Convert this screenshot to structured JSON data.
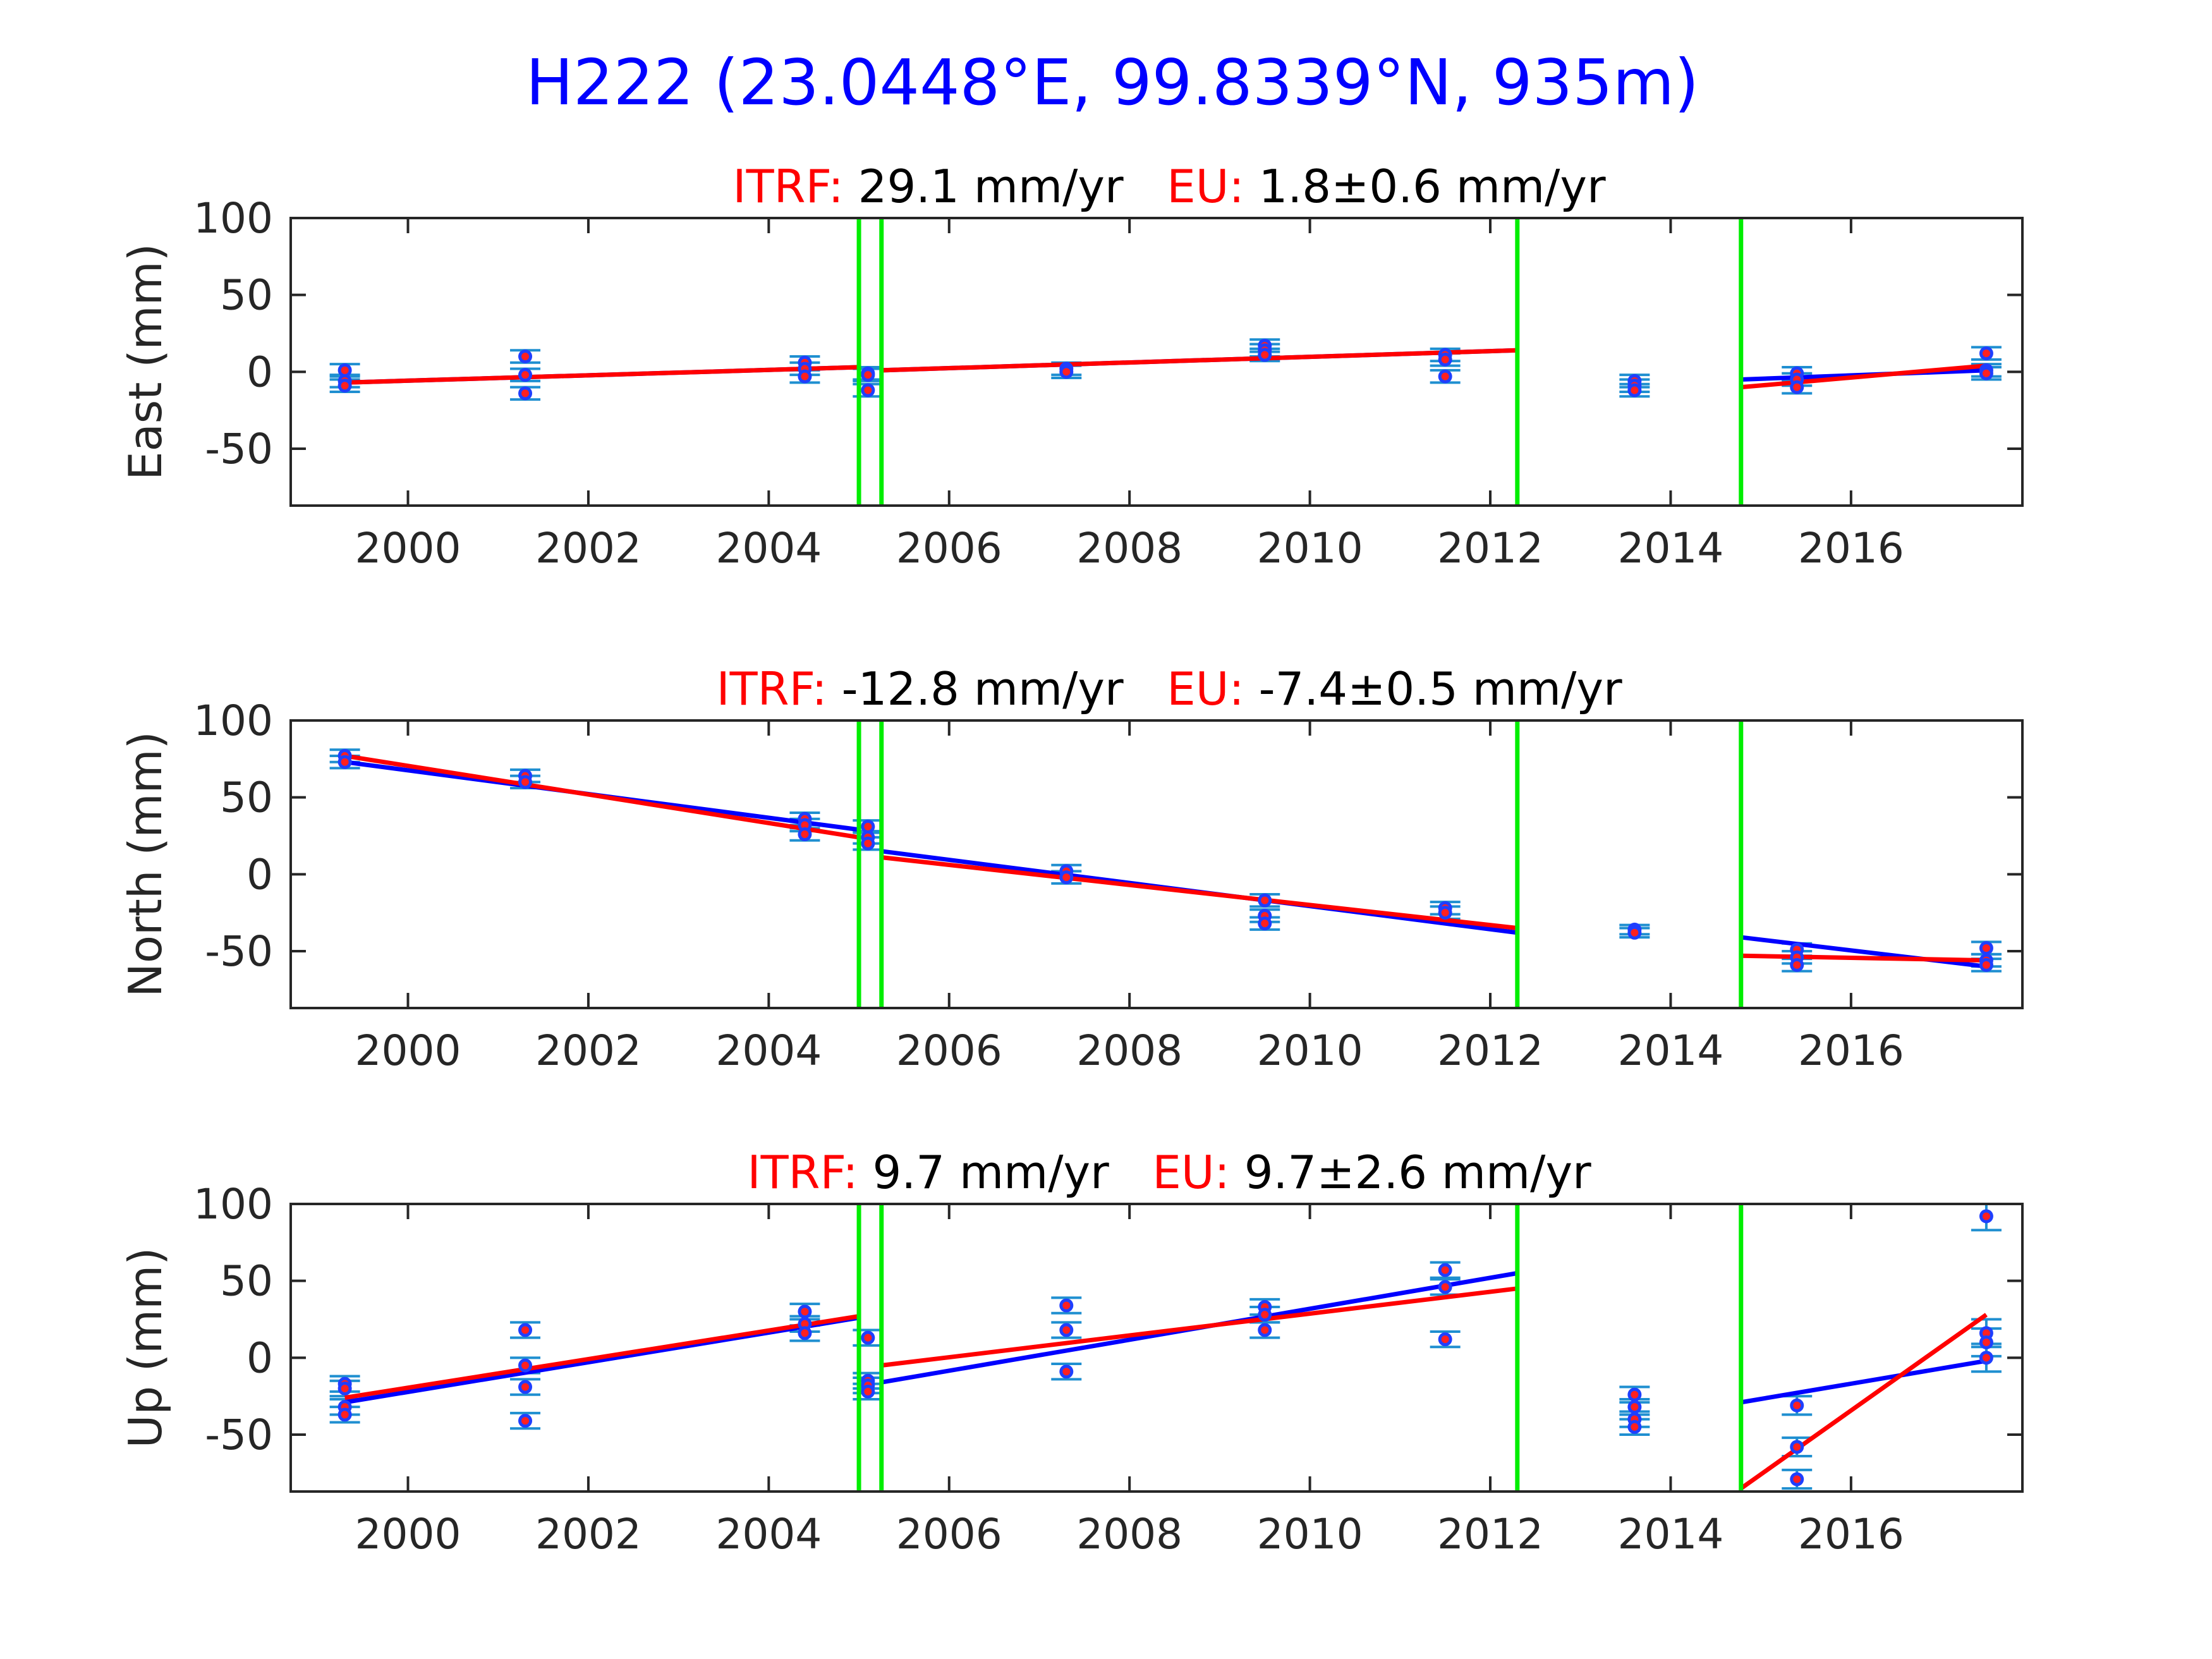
{
  "figure": {
    "title": "H222 (23.0448°E, 99.8339°N, 935m)"
  },
  "colors": {
    "title": "#0000ff",
    "itrf_label": "#ff0000",
    "eu_label": "#ff0000",
    "blue_fit": "#0000ff",
    "red_fit": "#ff0000",
    "steps": "#00ee00",
    "points_blue": "#1f3fff",
    "points_red": "#ff2020",
    "errorbar": "#1f8fd0"
  },
  "chart_data": [
    {
      "type": "scatter",
      "ylabel": "East (mm)",
      "itrf_label": "ITRF:",
      "itrf_value": "29.1 mm/yr",
      "eu_label": "EU:",
      "eu_value": "1.8±0.6 mm/yr",
      "xlim": [
        1998.7,
        2017.9
      ],
      "ylim": [
        -87,
        100
      ],
      "xticks": [
        2000,
        2002,
        2004,
        2006,
        2008,
        2010,
        2012,
        2014,
        2016
      ],
      "yticks": [
        100,
        50,
        0,
        -50
      ],
      "steps": [
        2005.0,
        2005.25,
        2012.3,
        2014.78
      ],
      "points": [
        {
          "x": 1999.3,
          "y": 1,
          "e": 4
        },
        {
          "x": 1999.3,
          "y": -6,
          "e": 4
        },
        {
          "x": 1999.3,
          "y": -9,
          "e": 4
        },
        {
          "x": 2001.3,
          "y": 10,
          "e": 4
        },
        {
          "x": 2001.3,
          "y": -2,
          "e": 4
        },
        {
          "x": 2001.3,
          "y": -14,
          "e": 4
        },
        {
          "x": 2004.4,
          "y": 6,
          "e": 4
        },
        {
          "x": 2004.4,
          "y": 2,
          "e": 4
        },
        {
          "x": 2004.4,
          "y": -3,
          "e": 4
        },
        {
          "x": 2005.1,
          "y": -1,
          "e": 4
        },
        {
          "x": 2005.1,
          "y": -2,
          "e": 4
        },
        {
          "x": 2005.1,
          "y": -12,
          "e": 4
        },
        {
          "x": 2007.3,
          "y": 2,
          "e": 4
        },
        {
          "x": 2007.3,
          "y": 0,
          "e": 4
        },
        {
          "x": 2009.5,
          "y": 17,
          "e": 4
        },
        {
          "x": 2009.5,
          "y": 14,
          "e": 4
        },
        {
          "x": 2009.5,
          "y": 11,
          "e": 4
        },
        {
          "x": 2011.5,
          "y": 11,
          "e": 4
        },
        {
          "x": 2011.5,
          "y": 8,
          "e": 4
        },
        {
          "x": 2011.5,
          "y": -3,
          "e": 4
        },
        {
          "x": 2013.6,
          "y": -6,
          "e": 4
        },
        {
          "x": 2013.6,
          "y": -9,
          "e": 4
        },
        {
          "x": 2013.6,
          "y": -12,
          "e": 4
        },
        {
          "x": 2015.4,
          "y": -1,
          "e": 4
        },
        {
          "x": 2015.4,
          "y": -5,
          "e": 4
        },
        {
          "x": 2015.4,
          "y": -10,
          "e": 4
        },
        {
          "x": 2017.5,
          "y": 12,
          "e": 4
        },
        {
          "x": 2017.5,
          "y": 1,
          "e": 4
        },
        {
          "x": 2017.5,
          "y": -1,
          "e": 4
        }
      ],
      "blue_fit": [
        [
          [
            1999.3,
            -7
          ],
          [
            2005.0,
            3
          ]
        ],
        [
          [
            2005.25,
            1
          ],
          [
            2012.3,
            14
          ]
        ],
        [
          [
            2014.78,
            -5
          ],
          [
            2017.5,
            1
          ]
        ]
      ],
      "red_fit": [
        [
          [
            1999.3,
            -7
          ],
          [
            2005.0,
            3
          ]
        ],
        [
          [
            2005.25,
            1
          ],
          [
            2012.3,
            14
          ]
        ],
        [
          [
            2014.78,
            -10
          ],
          [
            2017.5,
            4
          ]
        ]
      ]
    },
    {
      "type": "scatter",
      "ylabel": "North (mm)",
      "itrf_label": "ITRF:",
      "itrf_value": "-12.8 mm/yr",
      "eu_label": "EU:",
      "eu_value": "-7.4±0.5 mm/yr",
      "xlim": [
        1998.7,
        2017.9
      ],
      "ylim": [
        -87,
        100
      ],
      "xticks": [
        2000,
        2002,
        2004,
        2006,
        2008,
        2010,
        2012,
        2014,
        2016
      ],
      "yticks": [
        100,
        50,
        0,
        -50
      ],
      "steps": [
        2005.0,
        2005.25,
        2012.3,
        2014.78
      ],
      "points": [
        {
          "x": 1999.3,
          "y": 77,
          "e": 4
        },
        {
          "x": 1999.3,
          "y": 73,
          "e": 4
        },
        {
          "x": 2001.3,
          "y": 64,
          "e": 4
        },
        {
          "x": 2001.3,
          "y": 60,
          "e": 4
        },
        {
          "x": 2004.4,
          "y": 36,
          "e": 4
        },
        {
          "x": 2004.4,
          "y": 32,
          "e": 4
        },
        {
          "x": 2004.4,
          "y": 26,
          "e": 4
        },
        {
          "x": 2005.1,
          "y": 31,
          "e": 4
        },
        {
          "x": 2005.1,
          "y": 24,
          "e": 4
        },
        {
          "x": 2005.1,
          "y": 20,
          "e": 4
        },
        {
          "x": 2007.3,
          "y": 2,
          "e": 4
        },
        {
          "x": 2007.3,
          "y": -2,
          "e": 4
        },
        {
          "x": 2009.5,
          "y": -17,
          "e": 4
        },
        {
          "x": 2009.5,
          "y": -27,
          "e": 4
        },
        {
          "x": 2009.5,
          "y": -32,
          "e": 4
        },
        {
          "x": 2011.5,
          "y": -22,
          "e": 4
        },
        {
          "x": 2011.5,
          "y": -25,
          "e": 4
        },
        {
          "x": 2013.6,
          "y": -36,
          "e": 3
        },
        {
          "x": 2013.6,
          "y": -38,
          "e": 3
        },
        {
          "x": 2015.4,
          "y": -49,
          "e": 4
        },
        {
          "x": 2015.4,
          "y": -54,
          "e": 4
        },
        {
          "x": 2015.4,
          "y": -59,
          "e": 4
        },
        {
          "x": 2017.5,
          "y": -48,
          "e": 4
        },
        {
          "x": 2017.5,
          "y": -56,
          "e": 4
        },
        {
          "x": 2017.5,
          "y": -59,
          "e": 4
        }
      ],
      "blue_fit": [
        [
          [
            1999.3,
            73
          ],
          [
            2005.0,
            29
          ]
        ],
        [
          [
            2005.25,
            15
          ],
          [
            2012.3,
            -38
          ]
        ],
        [
          [
            2014.78,
            -41
          ],
          [
            2017.5,
            -60
          ]
        ]
      ],
      "red_fit": [
        [
          [
            1999.3,
            77
          ],
          [
            2005.0,
            24
          ]
        ],
        [
          [
            2005.25,
            11
          ],
          [
            2012.3,
            -35
          ]
        ],
        [
          [
            2014.78,
            -53
          ],
          [
            2017.5,
            -56
          ]
        ]
      ]
    },
    {
      "type": "scatter",
      "ylabel": "Up (mm)",
      "itrf_label": "ITRF:",
      "itrf_value": "9.7 mm/yr",
      "eu_label": "EU:",
      "eu_value": "9.7±2.6 mm/yr",
      "xlim": [
        1998.7,
        2017.9
      ],
      "ylim": [
        -87,
        100
      ],
      "xticks": [
        2000,
        2002,
        2004,
        2006,
        2008,
        2010,
        2012,
        2014,
        2016
      ],
      "yticks": [
        100,
        50,
        0,
        -50
      ],
      "steps": [
        2005.0,
        2005.25,
        2012.3,
        2014.78
      ],
      "points": [
        {
          "x": 1999.3,
          "y": -17,
          "e": 5
        },
        {
          "x": 1999.3,
          "y": -20,
          "e": 5
        },
        {
          "x": 1999.3,
          "y": -32,
          "e": 5
        },
        {
          "x": 1999.3,
          "y": -37,
          "e": 5
        },
        {
          "x": 2001.3,
          "y": 18,
          "e": 5
        },
        {
          "x": 2001.3,
          "y": -5,
          "e": 5
        },
        {
          "x": 2001.3,
          "y": -19,
          "e": 5
        },
        {
          "x": 2001.3,
          "y": -41,
          "e": 5
        },
        {
          "x": 2004.4,
          "y": 30,
          "e": 5
        },
        {
          "x": 2004.4,
          "y": 22,
          "e": 5
        },
        {
          "x": 2004.4,
          "y": 16,
          "e": 5
        },
        {
          "x": 2005.1,
          "y": 13,
          "e": 5
        },
        {
          "x": 2005.1,
          "y": -15,
          "e": 5
        },
        {
          "x": 2005.1,
          "y": -18,
          "e": 5
        },
        {
          "x": 2005.1,
          "y": -22,
          "e": 5
        },
        {
          "x": 2007.3,
          "y": 34,
          "e": 5
        },
        {
          "x": 2007.3,
          "y": 18,
          "e": 5
        },
        {
          "x": 2007.3,
          "y": -9,
          "e": 5
        },
        {
          "x": 2009.5,
          "y": 33,
          "e": 5
        },
        {
          "x": 2009.5,
          "y": 28,
          "e": 5
        },
        {
          "x": 2009.5,
          "y": 18,
          "e": 5
        },
        {
          "x": 2011.5,
          "y": 57,
          "e": 5
        },
        {
          "x": 2011.5,
          "y": 46,
          "e": 5
        },
        {
          "x": 2011.5,
          "y": 12,
          "e": 5
        },
        {
          "x": 2013.6,
          "y": -24,
          "e": 5
        },
        {
          "x": 2013.6,
          "y": -32,
          "e": 5
        },
        {
          "x": 2013.6,
          "y": -40,
          "e": 5
        },
        {
          "x": 2013.6,
          "y": -45,
          "e": 5
        },
        {
          "x": 2015.4,
          "y": -31,
          "e": 6
        },
        {
          "x": 2015.4,
          "y": -58,
          "e": 6
        },
        {
          "x": 2015.4,
          "y": -79,
          "e": 6
        },
        {
          "x": 2017.5,
          "y": 92,
          "e": 9
        },
        {
          "x": 2017.5,
          "y": 16,
          "e": 9
        },
        {
          "x": 2017.5,
          "y": 10,
          "e": 9
        },
        {
          "x": 2017.5,
          "y": 0,
          "e": 9
        }
      ],
      "blue_fit": [
        [
          [
            1999.3,
            -29
          ],
          [
            2005.0,
            26
          ]
        ],
        [
          [
            2005.25,
            -16
          ],
          [
            2012.3,
            55
          ]
        ],
        [
          [
            2014.78,
            -29
          ],
          [
            2017.5,
            -2
          ]
        ]
      ],
      "red_fit": [
        [
          [
            1999.3,
            -26
          ],
          [
            2005.0,
            27
          ]
        ],
        [
          [
            2005.25,
            -5
          ],
          [
            2012.3,
            45
          ]
        ],
        [
          [
            2014.78,
            -85
          ],
          [
            2017.5,
            28
          ]
        ]
      ]
    }
  ]
}
